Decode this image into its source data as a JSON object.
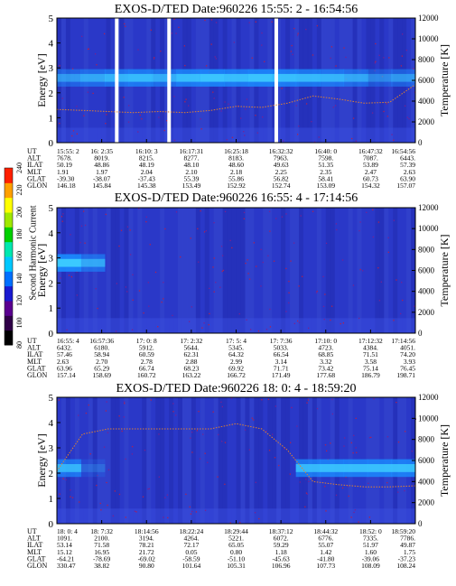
{
  "chart_data": {
    "type": "heatmap",
    "colorbar": {
      "label": "Second Harmonic Current",
      "ticks": [
        "80",
        "100",
        "120",
        "140",
        "160",
        "180",
        "200",
        "220",
        "240"
      ],
      "colors": [
        "#000000",
        "#300048",
        "#5a0090",
        "#1a1ad0",
        "#0070ff",
        "#00c8ff",
        "#00e8b0",
        "#00d000",
        "#a0e800",
        "#ffff00",
        "#ffa000",
        "#ff2000"
      ]
    },
    "panels": [
      {
        "title": "EXOS-D/TED   Date:960226  15:55: 2 - 16:54:56",
        "ylabel": "Energy [eV]",
        "y2label": "Temperature [K]",
        "ylim": [
          0,
          5
        ],
        "y2lim": [
          0,
          12000
        ],
        "yticks": [
          "0",
          "1",
          "2",
          "3",
          "4",
          "5"
        ],
        "y2ticks": [
          "0",
          "2000",
          "4000",
          "6000",
          "8000",
          "10000",
          "12000"
        ],
        "band_center": 2.6,
        "band_profile": [
          0.5,
          0.6,
          0.7,
          0.75,
          0.65,
          0.8,
          0.85,
          0.8,
          0.85,
          0.8,
          0.75,
          0.7,
          0.6,
          0.4,
          0.5
        ],
        "gaps": [
          0.167,
          0.313,
          0.612
        ],
        "temperature": [
          3200,
          3100,
          3000,
          2900,
          3000,
          2900,
          3100,
          3500,
          3400,
          3800,
          4500,
          4200,
          3800,
          3900,
          5600
        ],
        "row_labels": [
          "UT",
          "ALT",
          "ILAT",
          "MLT",
          "GLAT",
          "GLON"
        ],
        "columns": [
          [
            "15:55: 2",
            "7678.",
            "50.19",
            "1.91",
            "-39.30",
            "146.18"
          ],
          [
            "16: 2:35",
            "8019.",
            "48.86",
            "1.97",
            "-38.07",
            "145.84"
          ],
          [
            "16:10: 3",
            "8215.",
            "48.19",
            "2.04",
            "-37.43",
            "145.38"
          ],
          [
            "16:17:31",
            "8277.",
            "48.10",
            "2.10",
            "55.39",
            "153.49"
          ],
          [
            "16:25:18",
            "8183.",
            "48.60",
            "2.18",
            "55.86",
            "152.92"
          ],
          [
            "16:32:32",
            "7963.",
            "49.63",
            "2.25",
            "56.82",
            "152.74"
          ],
          [
            "16:40: 0",
            "7598.",
            "51.35",
            "2.35",
            "58.41",
            "153.09"
          ],
          [
            "16:47:32",
            "7087.",
            "53.89",
            "2.47",
            "60.73",
            "154.32"
          ],
          [
            "16:54:56",
            "6443.",
            "57.39",
            "2.63",
            "63.90",
            "157.07"
          ]
        ]
      },
      {
        "title": "EXOS-D/TED   Date:960226  16:55: 4 - 17:14:56",
        "ylabel": "Energy [eV]",
        "y2label": "Temperature [K]",
        "ylim": [
          0,
          5
        ],
        "y2lim": [
          0,
          12000
        ],
        "yticks": [
          "0",
          "1",
          "2",
          "3",
          "4",
          "5"
        ],
        "y2ticks": [
          "0",
          "2000",
          "4000",
          "6000",
          "8000",
          "10000",
          "12000"
        ],
        "band_center": 2.8,
        "band_profile": [
          0.9,
          0.6,
          0,
          0,
          0,
          0,
          0,
          0,
          0,
          0,
          0,
          0,
          0,
          0,
          0
        ],
        "gaps": [],
        "temperature": [],
        "row_labels": [
          "UT",
          "ALT",
          "ILAT",
          "MLT",
          "GLAT",
          "GLON"
        ],
        "columns": [
          [
            "16:55: 4",
            "6432.",
            "57.46",
            "2.63",
            "63.96",
            "157.14"
          ],
          [
            "16:57:36",
            "6180.",
            "58.94",
            "2.70",
            "65.29",
            "158.69"
          ],
          [
            "17: 0: 8",
            "5912.",
            "60.59",
            "2.78",
            "66.74",
            "160.72"
          ],
          [
            "17: 2:32",
            "5644.",
            "62.31",
            "2.88",
            "68.23",
            "163.22"
          ],
          [
            "17: 5: 4",
            "5345.",
            "64.32",
            "2.99",
            "69.92",
            "166.72"
          ],
          [
            "17: 7:36",
            "5033.",
            "66.54",
            "3.14",
            "71.71",
            "171.49"
          ],
          [
            "17:10: 0",
            "4723.",
            "68.85",
            "3.32",
            "73.42",
            "177.68"
          ],
          [
            "17:12:32",
            "4384.",
            "71.51",
            "3.58",
            "75.14",
            "186.79"
          ],
          [
            "17:14:56",
            "4051.",
            "74.20",
            "3.93",
            "76.45",
            "198.71"
          ]
        ]
      },
      {
        "title": "EXOS-D/TED   Date:960226  18: 0: 4 - 18:59:20",
        "ylabel": "Energy [eV]",
        "y2label": "Temperature [K]",
        "ylim": [
          0,
          5
        ],
        "y2lim": [
          0,
          12000
        ],
        "yticks": [
          "0",
          "1",
          "2",
          "3",
          "4",
          "5"
        ],
        "y2ticks": [
          "0",
          "2000",
          "4000",
          "6000",
          "8000",
          "10000",
          "12000"
        ],
        "band_center": 2.2,
        "band_profile": [
          0.7,
          0.2,
          0,
          0,
          0,
          0,
          0,
          0,
          0,
          0,
          0.75,
          0.8,
          0.8,
          0.8,
          0.8
        ],
        "gaps": [],
        "temperature": [
          5000,
          8500,
          9000,
          9000,
          9000,
          9000,
          9000,
          9500,
          9000,
          7000,
          4000,
          3700,
          3500,
          3500,
          3600
        ],
        "row_labels": [
          "UT",
          "ALT",
          "ILAT",
          "MLT",
          "GLAT",
          "GLON"
        ],
        "columns": [
          [
            "18: 0: 4",
            "1091.",
            "53.14",
            "15.12",
            "-64.21",
            "330.47"
          ],
          [
            "18: 7:32",
            "2100.",
            "71.58",
            "16.95",
            "-78.69",
            "38.82"
          ],
          [
            "18:14:56",
            "3194.",
            "78.21",
            "21.72",
            "-69.02",
            "90.80"
          ],
          [
            "18:22:24",
            "4264.",
            "72.17",
            "0.05",
            "-58.59",
            "101.64"
          ],
          [
            "18:29:44",
            "5221.",
            "65.05",
            "0.80",
            "-51.10",
            "105.31"
          ],
          [
            "18:37:12",
            "6072.",
            "59.29",
            "1.18",
            "-45.63",
            "106.96"
          ],
          [
            "18:44:32",
            "6776.",
            "55.07",
            "1.42",
            "-41.80",
            "107.73"
          ],
          [
            "18:52: 0",
            "7335.",
            "51.97",
            "1.60",
            "-39.06",
            "108.09"
          ],
          [
            "18:59:20",
            "7786.",
            "49.87",
            "1.75",
            "-37.23",
            "108.24"
          ]
        ]
      }
    ]
  }
}
